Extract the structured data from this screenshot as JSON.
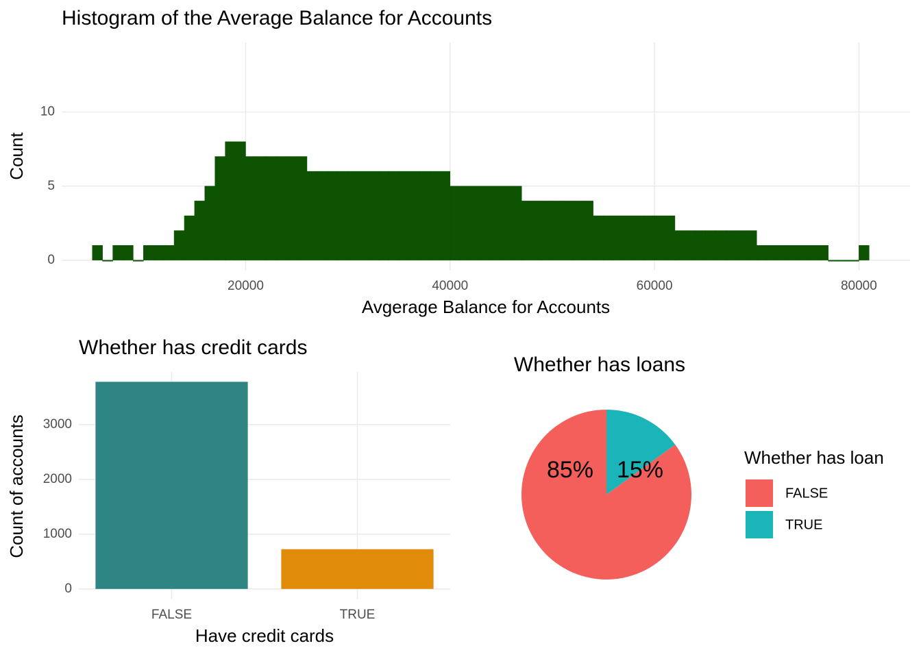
{
  "chart_data": [
    {
      "type": "histogram",
      "title": "Histogram of the Average Balance for Accounts",
      "x_label": "Avgerage Balance for Accounts",
      "y_label": "Count",
      "color": "#0d5302",
      "bins": [
        5000,
        6000,
        7000,
        8000,
        9000,
        10000,
        11000,
        12000,
        13000,
        14000,
        15000,
        16000,
        17000,
        18000,
        19000,
        20000,
        21000,
        22000,
        23000,
        24000,
        25000,
        26000,
        27000,
        28000,
        29000,
        30000,
        31000,
        32000,
        33000,
        34000,
        35000,
        36000,
        37000,
        38000,
        39000,
        40000,
        41000,
        42000,
        43000,
        44000,
        45000,
        46000,
        47000,
        48000,
        49000,
        50000,
        51000,
        52000,
        53000,
        54000,
        55000,
        56000,
        57000,
        58000,
        59000,
        60000,
        61000,
        62000,
        63000,
        64000,
        65000,
        66000,
        67000,
        68000,
        69000,
        70000,
        71000,
        72000,
        73000,
        74000,
        75000,
        76000,
        77000,
        78000,
        79000,
        80000,
        81000
      ],
      "values": [
        1,
        0,
        1,
        1,
        0,
        1,
        1,
        1,
        2,
        3,
        4,
        5,
        7,
        8,
        8,
        7,
        7,
        7,
        7,
        7,
        7,
        6,
        6,
        6,
        6,
        6,
        6,
        6,
        6,
        6,
        6,
        6,
        6,
        6,
        6,
        5,
        5,
        5,
        5,
        5,
        5,
        5,
        4,
        4,
        4,
        4,
        4,
        4,
        4,
        3,
        3,
        3,
        3,
        3,
        3,
        3,
        3,
        2,
        2,
        2,
        2,
        2,
        2,
        2,
        2,
        1,
        1,
        1,
        1,
        1,
        1,
        1,
        0,
        0,
        0,
        1
      ],
      "xlim": [
        2000,
        85000
      ],
      "xticks": [
        20000,
        40000,
        60000,
        80000
      ],
      "ylim": [
        -0.7,
        14.7
      ],
      "yticks": [
        0,
        5,
        10
      ],
      "grid": true
    },
    {
      "type": "bar",
      "title": "Whether has credit cards",
      "x_label": "Have credit cards",
      "y_label": "Count of accounts",
      "categories": [
        "FALSE",
        "TRUE"
      ],
      "values": [
        3780,
        725
      ],
      "colors": [
        "#2e8583",
        "#e08b0a"
      ],
      "ylim": [
        -190,
        3960
      ],
      "yticks": [
        0,
        1000,
        2000,
        3000
      ],
      "grid": true
    },
    {
      "type": "pie",
      "title": "Whether has loans",
      "legend_title": "Whether has loan",
      "categories": [
        "FALSE",
        "TRUE"
      ],
      "values": [
        85,
        15
      ],
      "value_labels": [
        "85%",
        "15%"
      ],
      "colors": [
        "#f45f5c",
        "#1ab5b8"
      ],
      "legend": "right"
    }
  ]
}
